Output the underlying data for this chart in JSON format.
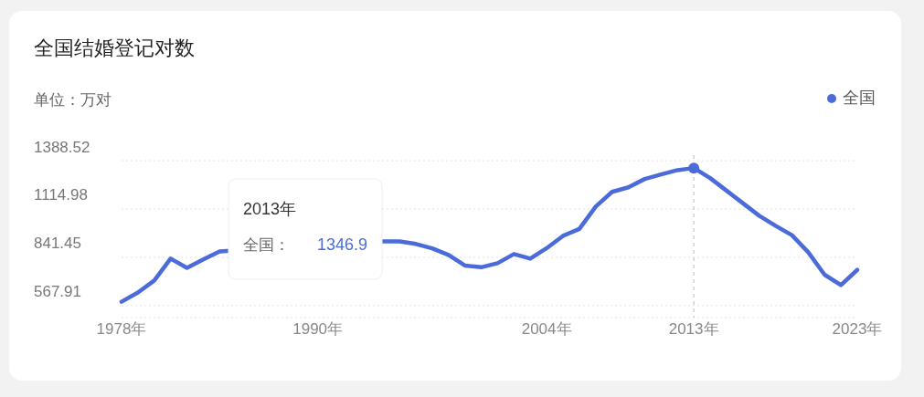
{
  "chart_data": {
    "type": "line",
    "title": "全国结婚登记对数",
    "subtitle": "单位：万对",
    "x": [
      1978,
      1979,
      1980,
      1981,
      1982,
      1983,
      1984,
      1994,
      1995,
      1996,
      1997,
      1998,
      1999,
      2000,
      2001,
      2002,
      2003,
      2004,
      2005,
      2006,
      2007,
      2008,
      2009,
      2010,
      2011,
      2012,
      2013,
      2014,
      2015,
      2016,
      2017,
      2018,
      2019,
      2020,
      2021,
      2022,
      2023
    ],
    "series": [
      {
        "name": "全国",
        "color": "#4b6bdb",
        "values": [
          590,
          642,
          710,
          834,
          782,
          829,
          875,
          932,
          932,
          917,
          892,
          855,
          795,
          785,
          808,
          860,
          834,
          893,
          963,
          1002,
          1129,
          1212,
          1238,
          1285,
          1311,
          1335,
          1346.9,
          1290,
          1219,
          1148,
          1077,
          1020,
          967,
          870,
          743,
          684,
          770
        ]
      }
    ],
    "xlim": [
      1978,
      2023
    ],
    "xticks": [
      {
        "value": 1978,
        "label": "1978年"
      },
      {
        "value": 1990,
        "label": "1990年"
      },
      {
        "value": 2004,
        "label": "2004年"
      },
      {
        "value": 2013,
        "label": "2013年"
      },
      {
        "value": 2023,
        "label": "2023年"
      }
    ],
    "ylim": [
      500,
      1420
    ],
    "yticks": [
      567.91,
      841.45,
      1114.98,
      1388.52
    ],
    "grid": "y",
    "legend": "top right",
    "marker": "none",
    "line_style": "solid",
    "ref_lines": [
      {
        "axis": "x",
        "value": 2013,
        "color": "#bbbbbb",
        "line_style": "dashed"
      }
    ],
    "annotations": [
      "2013年",
      "全国：",
      "1346.9"
    ]
  }
}
